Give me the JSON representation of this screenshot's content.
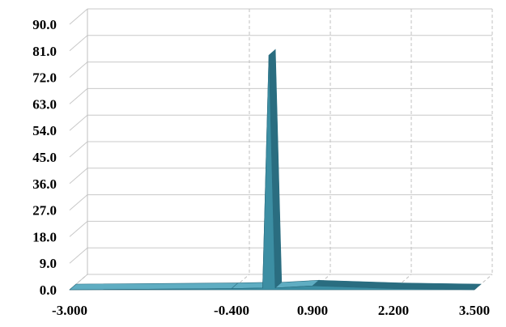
{
  "chart_data": {
    "type": "area",
    "style": "3d",
    "title": "",
    "xlabel": "",
    "ylabel": "",
    "x": [
      -3.0,
      -0.4,
      0.1,
      0.2,
      0.3,
      0.9,
      2.2,
      3.5
    ],
    "values": [
      0.0,
      0.4,
      0.6,
      79.5,
      0.6,
      1.3,
      0.4,
      0.0
    ],
    "xlim": [
      -3.0,
      3.5
    ],
    "ylim": [
      0.0,
      90.0
    ],
    "x_tick_labels": [
      "-3.000",
      "-0.400",
      "0.900",
      "2.200",
      "3.500"
    ],
    "y_tick_labels": [
      "0.0",
      "9.0",
      "18.0",
      "27.0",
      "36.0",
      "45.0",
      "54.0",
      "63.0",
      "72.0",
      "81.0",
      "90.0"
    ],
    "grid": true,
    "legend": "none",
    "colors": {
      "fill_front": "#3c8ea3",
      "fill_top": "#5fadc2",
      "fill_side": "#2a6d80",
      "gridline": "#c8c8c8",
      "vertical_gridline": "#c0c0c0",
      "axis": "#bfbfbf",
      "text": "#000000"
    }
  }
}
